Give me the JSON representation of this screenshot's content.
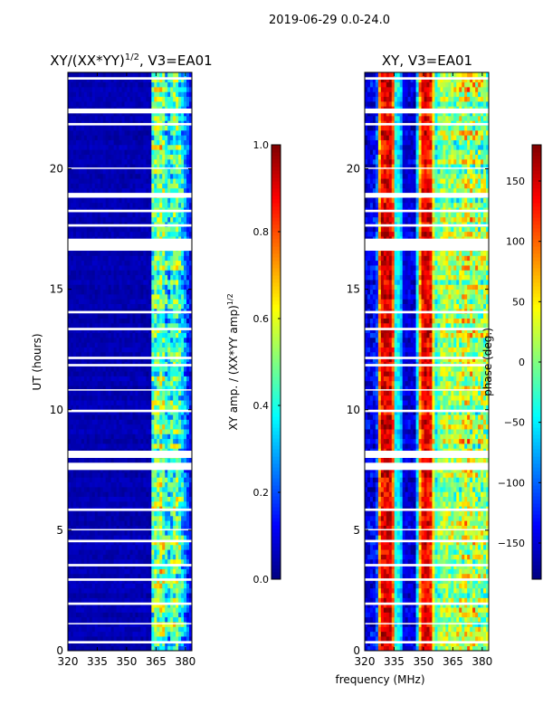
{
  "suptitle": "2019-06-29 0.0-24.0",
  "shared_xlabel": "frequency (MHz)",
  "chart_data": [
    {
      "type": "heatmap",
      "title_main": "XY/(XX*YY)",
      "title_sup": "1/2",
      "title_tail": ", V3=EA01",
      "xlabel": "",
      "ylabel": "UT (hours)",
      "xlim": [
        320,
        383.3
      ],
      "ylim": [
        0,
        24
      ],
      "xticks": [
        "320",
        "335",
        "350",
        "365",
        "380"
      ],
      "xtick_values": [
        320,
        335,
        350,
        365,
        380
      ],
      "yticks": [
        "0",
        "5",
        "10",
        "15",
        "20"
      ],
      "ytick_values": [
        0,
        5,
        10,
        15,
        20
      ],
      "colormap": "jet",
      "clim": [
        0,
        1
      ],
      "colorbar_label_main": "XY amp. / (XX*YY amp)",
      "colorbar_label_sup": "1/2",
      "colorbar_ticks": [
        "0.0",
        "0.2",
        "0.4",
        "0.6",
        "0.8",
        "1.0"
      ],
      "colorbar_tick_values": [
        0,
        0.2,
        0.4,
        0.6,
        0.8,
        1.0
      ],
      "freq_profile": [
        [
          320,
          0.05,
          0.02
        ],
        [
          362,
          0.05,
          0.03
        ],
        [
          363,
          0.45,
          0.2
        ],
        [
          368,
          0.55,
          0.2
        ],
        [
          371,
          0.35,
          0.2
        ],
        [
          375,
          0.5,
          0.2
        ],
        [
          378,
          0.4,
          0.2
        ],
        [
          381,
          0.2,
          0.1
        ],
        [
          383.3,
          0.1,
          0.05
        ]
      ]
    },
    {
      "type": "heatmap",
      "title_main": "XY, V3=EA01",
      "title_sup": "",
      "title_tail": "",
      "xlabel": "",
      "ylabel": "",
      "xlim": [
        320,
        383.3
      ],
      "ylim": [
        0,
        24
      ],
      "xticks": [
        "320",
        "335",
        "350",
        "365",
        "380"
      ],
      "xtick_values": [
        320,
        335,
        350,
        365,
        380
      ],
      "yticks": [
        "0",
        "5",
        "10",
        "15",
        "20"
      ],
      "ytick_values": [
        0,
        5,
        10,
        15,
        20
      ],
      "colormap": "jet",
      "clim": [
        -180,
        180
      ],
      "colorbar_label_main": "phase (deg.)",
      "colorbar_label_sup": "",
      "colorbar_ticks": [
        "−150",
        "−100",
        "−50",
        "0",
        "50",
        "100",
        "150"
      ],
      "colorbar_tick_values": [
        -150,
        -100,
        -50,
        0,
        50,
        100,
        150
      ],
      "freq_profile": [
        [
          320,
          -150,
          30
        ],
        [
          326,
          -140,
          40
        ],
        [
          328,
          140,
          40
        ],
        [
          334,
          150,
          30
        ],
        [
          336,
          -60,
          30
        ],
        [
          338,
          -40,
          30
        ],
        [
          340,
          -150,
          20
        ],
        [
          346,
          -150,
          30
        ],
        [
          348,
          60,
          40
        ],
        [
          350,
          150,
          30
        ],
        [
          354,
          130,
          40
        ],
        [
          356,
          -40,
          40
        ],
        [
          360,
          20,
          50
        ],
        [
          366,
          0,
          60
        ],
        [
          372,
          30,
          80
        ],
        [
          378,
          10,
          80
        ],
        [
          383.3,
          0,
          60
        ]
      ]
    }
  ],
  "flagged_hours": [
    [
      0.3,
      0.4
    ],
    [
      1.1,
      1.15
    ],
    [
      1.9,
      2.0
    ],
    [
      2.9,
      3.0
    ],
    [
      3.5,
      3.6
    ],
    [
      4.5,
      4.6
    ],
    [
      5.0,
      5.05
    ],
    [
      5.8,
      5.9
    ],
    [
      7.5,
      7.8
    ],
    [
      8.0,
      8.3
    ],
    [
      9.9,
      10.0
    ],
    [
      10.8,
      10.85
    ],
    [
      11.8,
      11.9
    ],
    [
      12.1,
      12.2
    ],
    [
      13.3,
      13.4
    ],
    [
      14.0,
      14.1
    ],
    [
      16.6,
      17.1
    ],
    [
      17.6,
      17.7
    ],
    [
      18.2,
      18.3
    ],
    [
      18.8,
      19.0
    ],
    [
      20.0,
      20.05
    ],
    [
      21.8,
      21.9
    ],
    [
      22.3,
      22.5
    ],
    [
      23.7,
      23.8
    ]
  ]
}
